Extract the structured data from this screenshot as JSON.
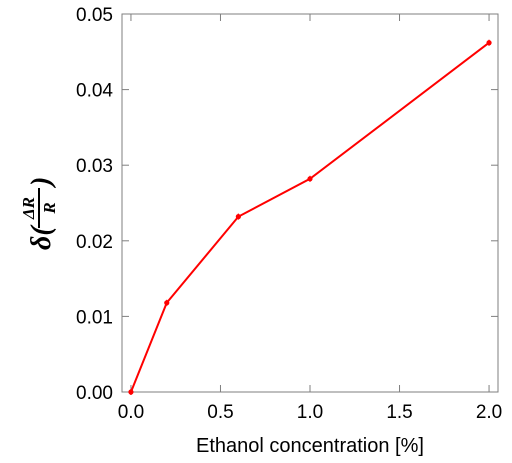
{
  "chart_data": {
    "type": "line",
    "title": "",
    "xlabel": "Ethanol concentration [%]",
    "ylabel": {
      "prefix": "δ(",
      "numerator": "ΔR",
      "denominator": "R",
      "suffix": ")"
    },
    "xlim": [
      -0.05,
      2.05
    ],
    "ylim": [
      0,
      0.05
    ],
    "x_ticks": [
      "0.0",
      "0.5",
      "1.0",
      "1.5",
      "2.0"
    ],
    "y_ticks": [
      "0.00",
      "0.01",
      "0.02",
      "0.03",
      "0.04",
      "0.05"
    ],
    "grid": false,
    "series": [
      {
        "color": "#ff0000",
        "x": [
          0.0,
          0.2,
          0.6,
          1.0,
          2.0
        ],
        "y": [
          0.0,
          0.0118,
          0.0232,
          0.0282,
          0.0462
        ]
      }
    ]
  }
}
